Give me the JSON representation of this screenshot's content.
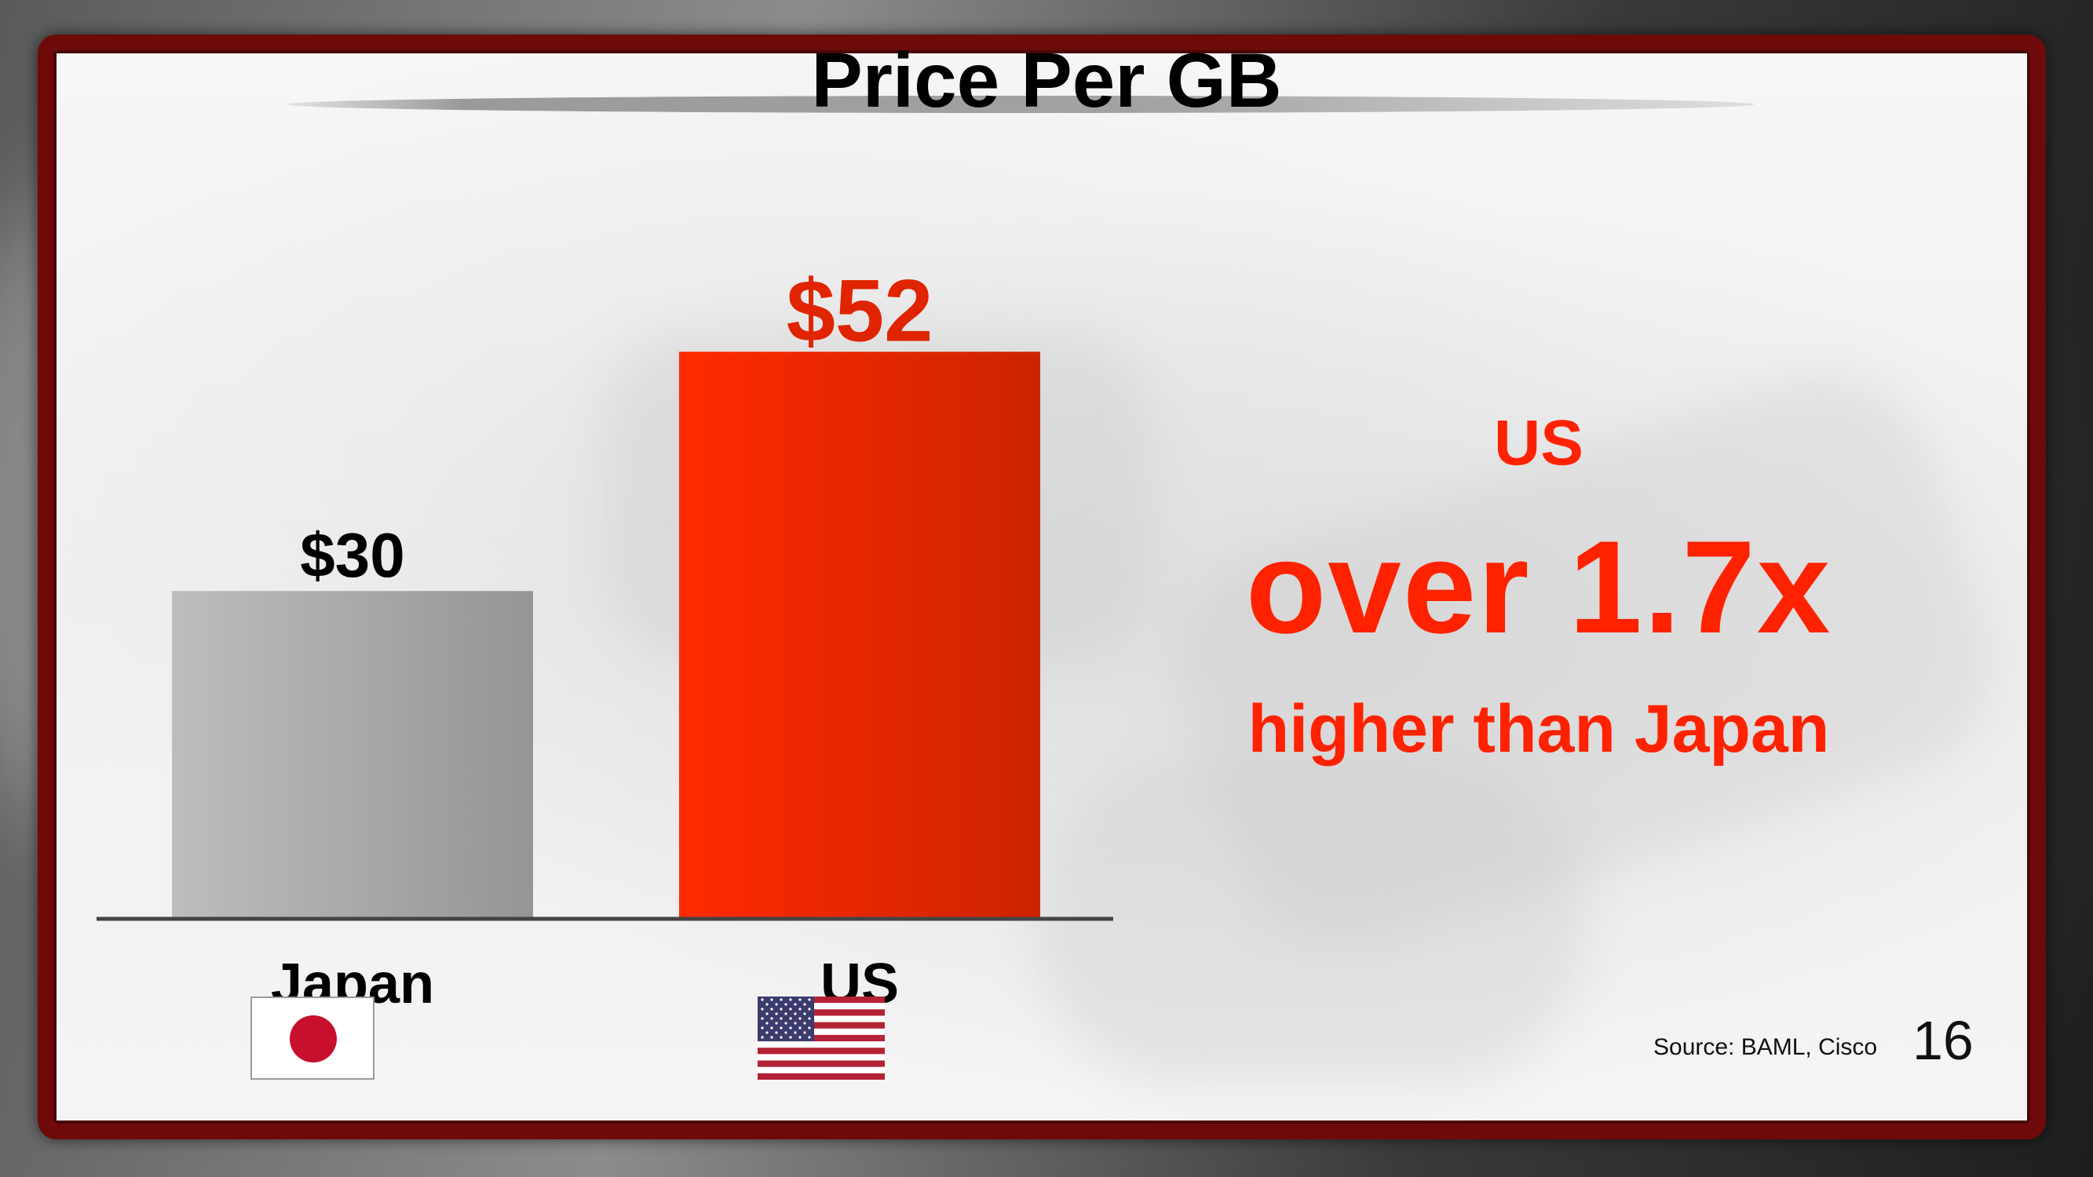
{
  "slide": {
    "title": "Price Per GB",
    "source": "Source: BAML, Cisco",
    "page_number": "16"
  },
  "callout": {
    "line1": "US",
    "line2": "over 1.7x",
    "line3": "higher than Japan"
  },
  "colors": {
    "frame": "#6e0a0a",
    "accent_red": "#ff2200",
    "japan_bar": "#a9a9a9",
    "us_bar": "#ff2a00",
    "us_value_text": "#e02400",
    "japan_value_text": "#000000",
    "axis": "#444444"
  },
  "flags": {
    "japan": "japan-flag-icon",
    "us": "us-flag-icon"
  },
  "chart_data": {
    "type": "bar",
    "title": "Price Per GB",
    "categories": [
      "Japan",
      "US"
    ],
    "values": [
      30,
      52
    ],
    "value_labels": [
      "$30",
      "$52"
    ],
    "xlabel": "",
    "ylabel": "",
    "grid": false,
    "legend": "none"
  }
}
